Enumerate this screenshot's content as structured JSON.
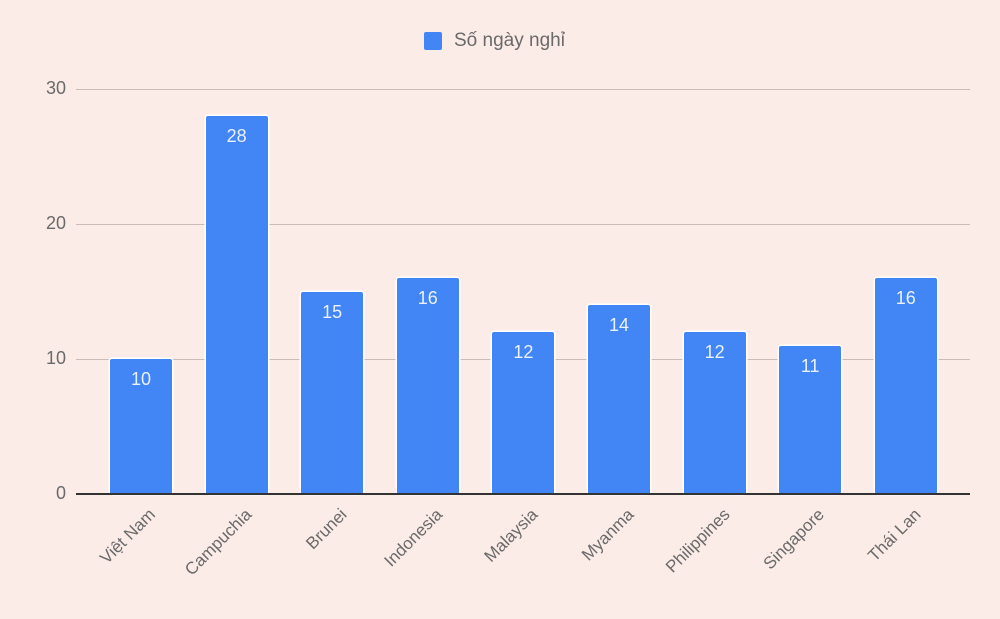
{
  "chart_data": {
    "type": "bar",
    "title": "",
    "xlabel": "",
    "ylabel": "",
    "categories": [
      "Việt Nam",
      "Campuchia",
      "Brunei",
      "Indonesia",
      "Malaysia",
      "Myanma",
      "Philippines",
      "Singapore",
      "Thái Lan"
    ],
    "series": [
      {
        "name": "Số ngày nghỉ",
        "values": [
          10,
          28,
          15,
          16,
          12,
          14,
          12,
          11,
          16
        ],
        "color": "#4285f4"
      }
    ],
    "ylim": [
      0,
      30
    ],
    "yticks": [
      "0",
      "10",
      "20",
      "30"
    ],
    "grid": true,
    "legend_position": "top",
    "data_labels": true
  },
  "legend": {
    "label": "Số ngày nghỉ"
  }
}
